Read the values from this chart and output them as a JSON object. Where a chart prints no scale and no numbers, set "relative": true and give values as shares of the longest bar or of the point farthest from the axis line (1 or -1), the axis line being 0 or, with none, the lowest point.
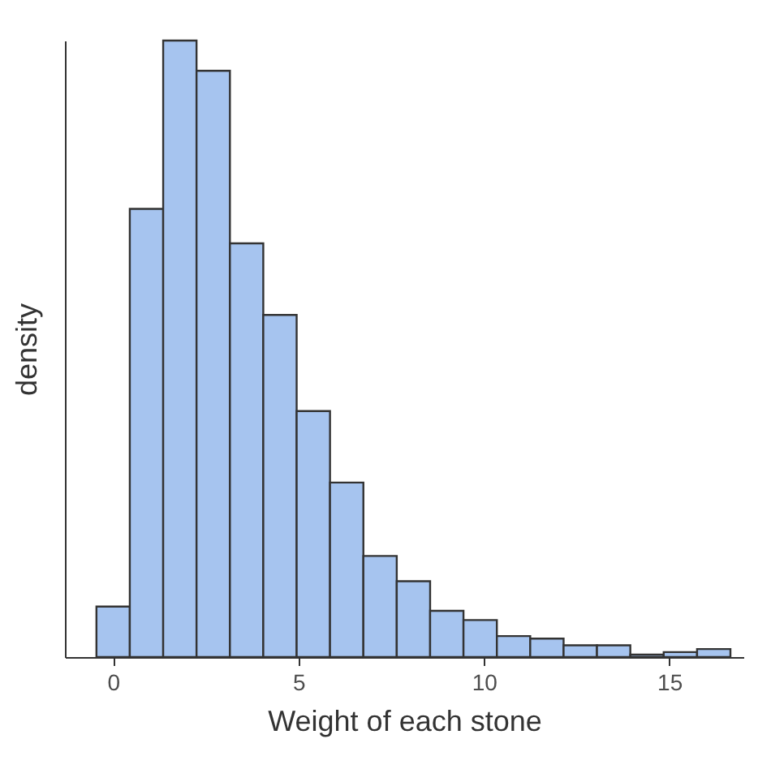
{
  "chart_data": {
    "type": "bar",
    "xlabel": "Weight of each stone",
    "ylabel": "density",
    "relative": true,
    "color": "#a6c4ef",
    "x": [
      0,
      0.9,
      1.8,
      2.7,
      3.6,
      4.5,
      5.4,
      6.3,
      7.2,
      8.1,
      9,
      9.9,
      10.8,
      11.7,
      12.6,
      13.5,
      14.4,
      15.3,
      16.2
    ],
    "values": [
      0.082,
      0.727,
      1,
      0.951,
      0.671,
      0.555,
      0.399,
      0.283,
      0.164,
      0.123,
      0.075,
      0.06,
      0.034,
      0.03,
      0.019,
      0.019,
      0.004,
      0.008,
      0.013
    ],
    "xlim": [
      -1.3,
      17
    ],
    "xticks": [
      0,
      5,
      10,
      15
    ],
    "grid": false,
    "tick_labels": "x"
  }
}
